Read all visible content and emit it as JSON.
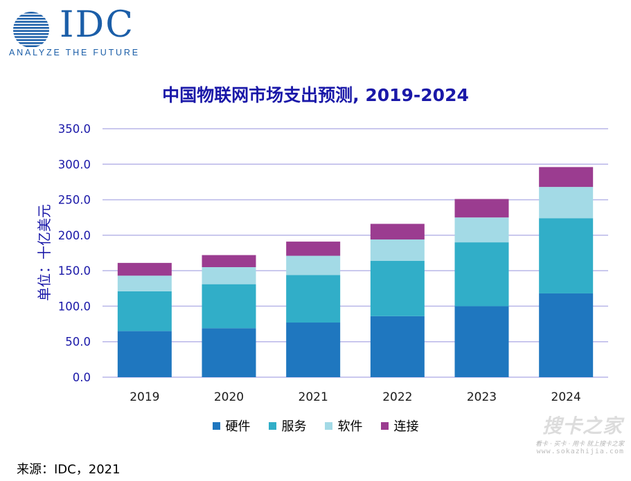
{
  "logo": {
    "wordmark": "IDC",
    "tagline": "ANALYZE THE FUTURE",
    "color": "#1b5ea8"
  },
  "chart_data": {
    "type": "bar",
    "stacked": true,
    "title": "中国物联网市场支出预测, 2019-2024",
    "ylabel": "单位：十亿美元",
    "xlabel": "",
    "ylim": [
      0,
      350
    ],
    "yticks": [
      0,
      50,
      100,
      150,
      200,
      250,
      300,
      350
    ],
    "ytick_labels": [
      "0.0",
      "50.0",
      "100.0",
      "150.0",
      "200.0",
      "250.0",
      "300.0",
      "350.0"
    ],
    "categories": [
      "2019",
      "2020",
      "2021",
      "2022",
      "2023",
      "2024"
    ],
    "series": [
      {
        "name": "硬件",
        "color": "#1f77bf",
        "values": [
          65,
          69,
          77,
          86,
          100,
          118
        ]
      },
      {
        "name": "服务",
        "color": "#31aec8",
        "values": [
          56,
          62,
          67,
          78,
          90,
          106
        ]
      },
      {
        "name": "软件",
        "color": "#a3dae6",
        "values": [
          22,
          24,
          27,
          30,
          35,
          44
        ]
      },
      {
        "name": "连接",
        "color": "#9b3c90",
        "values": [
          18,
          17,
          20,
          22,
          26,
          28
        ]
      }
    ],
    "grid": true,
    "legend": "bottom",
    "title_color": "#1a18a8",
    "ylabel_color": "#1a18a8",
    "gridline_color": "#b8b6e8"
  },
  "source_note": "来源：IDC，2021",
  "watermark": {
    "text": "搜卡之家",
    "sub": "看卡 · 买卡 · 用卡 就上搜卡之家",
    "url": "www.sokazhijia.com"
  }
}
